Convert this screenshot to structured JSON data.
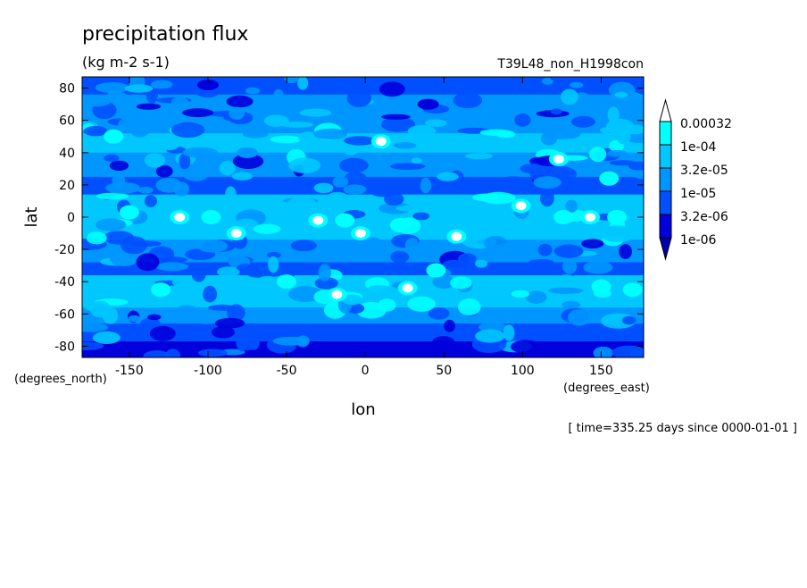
{
  "chart_data": {
    "type": "heatmap",
    "title": "precipitation flux",
    "units": "(kg m-2 s-1)",
    "run_label": "T39L48_non_H1998con",
    "xlabel": "lon",
    "ylabel": "lat",
    "x_units": "(degrees_east)",
    "y_units": "(degrees_north)",
    "time_label": "[ time=335.25 days since 0000-01-01 ]",
    "xlim": [
      -180,
      177
    ],
    "ylim": [
      -87,
      87
    ],
    "x_ticks": [
      -150,
      -100,
      -50,
      0,
      50,
      100,
      150
    ],
    "y_ticks": [
      80,
      60,
      40,
      20,
      0,
      -20,
      -40,
      -60,
      -80
    ],
    "x_tick_labels": [
      "-150",
      "-100",
      "-50",
      "0",
      "50",
      "100",
      "150"
    ],
    "y_tick_labels": [
      "80",
      "60",
      "40",
      "20",
      "0",
      "-20",
      "-40",
      "-60",
      "-80"
    ],
    "colorbar": {
      "labels": [
        "0.00032",
        "1e-04",
        "3.2e-05",
        "1e-05",
        "3.2e-06",
        "1e-06"
      ],
      "levels": [
        0.00032,
        0.0001,
        3.2e-05,
        1e-05,
        3.2e-06,
        1e-06
      ],
      "colors": [
        "#ffffff",
        "#00ffff",
        "#00c8ff",
        "#0096ff",
        "#0050ff",
        "#0000dc",
        "#0000aa"
      ]
    },
    "features": [
      {
        "lon": -150,
        "lat": 3,
        "value": 0.0001
      },
      {
        "lon": -118,
        "lat": 0,
        "value": 0.00032
      },
      {
        "lon": -98,
        "lat": 0,
        "value": 0.0001
      },
      {
        "lon": -82,
        "lat": -10,
        "value": 0.00032
      },
      {
        "lon": -30,
        "lat": -2,
        "value": 0.00032
      },
      {
        "lon": -13,
        "lat": -2,
        "value": 0.0001
      },
      {
        "lon": -3,
        "lat": -10,
        "value": 0.00032
      },
      {
        "lon": 22,
        "lat": -5,
        "value": 0.0001
      },
      {
        "lon": 58,
        "lat": -12,
        "value": 0.00032
      },
      {
        "lon": 99,
        "lat": 7,
        "value": 0.00032
      },
      {
        "lon": 126,
        "lat": 0,
        "value": 0.0001
      },
      {
        "lon": 143,
        "lat": 0,
        "value": 0.00032
      },
      {
        "lon": 160,
        "lat": 0,
        "value": 0.0001
      },
      {
        "lon": 10,
        "lat": 47,
        "value": 0.00032
      },
      {
        "lon": 123,
        "lat": 36,
        "value": 0.00032
      },
      {
        "lon": 155,
        "lat": 24,
        "value": 0.0001
      },
      {
        "lon": -50,
        "lat": -40,
        "value": 0.0001
      },
      {
        "lon": -18,
        "lat": -48,
        "value": 0.00032
      },
      {
        "lon": 27,
        "lat": -44,
        "value": 0.00032
      },
      {
        "lon": 45,
        "lat": -33,
        "value": 0.0001
      },
      {
        "lon": 150,
        "lat": -43,
        "value": 0.0001
      },
      {
        "lon": -130,
        "lat": -45,
        "value": 0.0001
      },
      {
        "lon": 170,
        "lat": -45,
        "value": 0.0001
      },
      {
        "lon": -160,
        "lat": 50,
        "value": 0.0001
      },
      {
        "lon": -75,
        "lat": 40,
        "value": 3e-05
      },
      {
        "lon": 40,
        "lat": 70,
        "value": 1e-06
      },
      {
        "lon": -100,
        "lat": 82,
        "value": 1e-06
      },
      {
        "lon": 60,
        "lat": -82,
        "value": 1e-06
      }
    ]
  }
}
